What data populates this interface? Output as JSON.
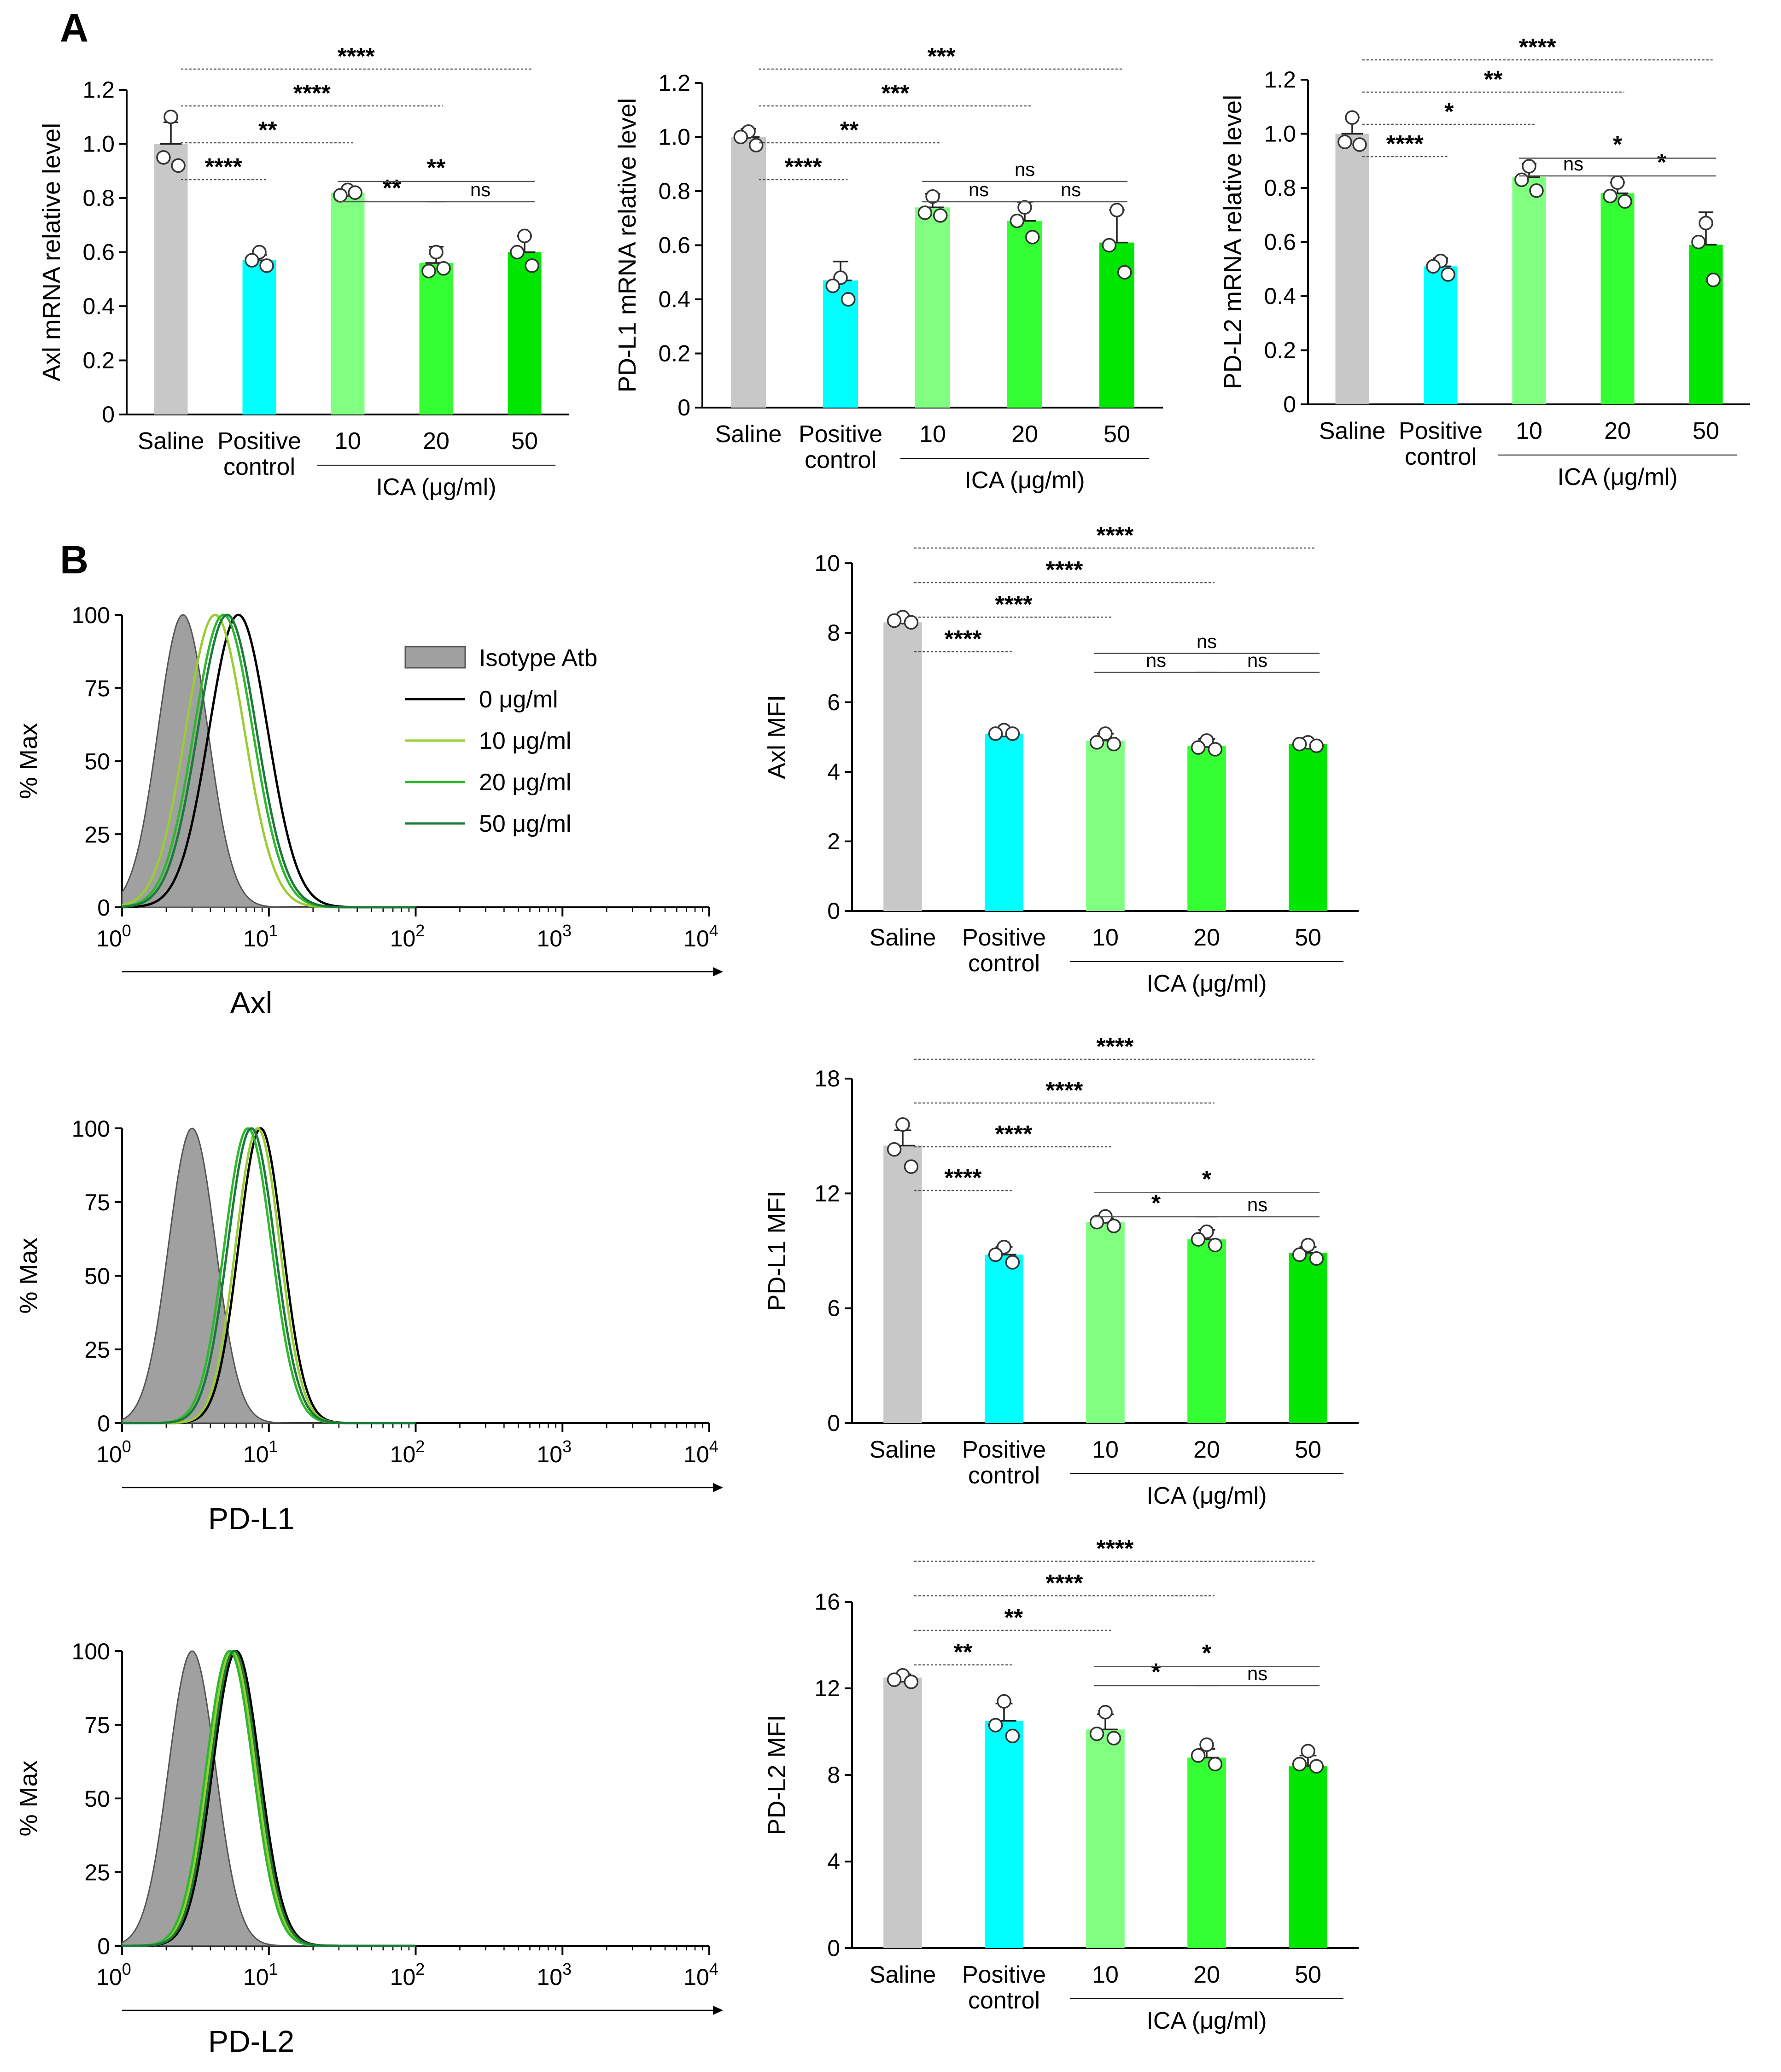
{
  "panel_labels": [
    "A",
    "B"
  ],
  "colors": {
    "saline": "#c8c8c8",
    "positive": "#00ffff",
    "ica10": "#80ff80",
    "ica20": "#33ff33",
    "ica50": "#00e600",
    "isotype": "#a0a0a0",
    "c0": "#000000",
    "c10": "#9acd32",
    "c20": "#2eb82e",
    "c50": "#1a7a3a"
  },
  "chart_data": [
    {
      "id": "axl_mrna",
      "type": "bar",
      "panel": "A",
      "ylabel": "Axl mRNA relative level",
      "ylim": [
        0,
        1.2
      ],
      "yticks": [
        "0",
        "0.2",
        "0.4",
        "0.6",
        "0.8",
        "1.0",
        "1.2"
      ],
      "categories": [
        "Saline",
        "Positive control",
        "10",
        "20",
        "50"
      ],
      "category_lines": [
        [
          "Saline"
        ],
        [
          "Positive",
          "control"
        ],
        [
          "10"
        ],
        [
          "20"
        ],
        [
          "50"
        ]
      ],
      "group_label": "ICA (μg/ml)",
      "values": [
        1.0,
        0.57,
        0.82,
        0.56,
        0.6
      ],
      "errors": [
        0.08,
        0.02,
        0.015,
        0.06,
        0.06
      ],
      "points": [
        [
          1.1,
          0.95,
          0.92
        ],
        [
          0.6,
          0.57,
          0.55
        ],
        [
          0.83,
          0.81,
          0.82
        ],
        [
          0.6,
          0.53,
          0.54
        ],
        [
          0.66,
          0.6,
          0.55
        ]
      ],
      "significance": [
        {
          "from": 0,
          "to": 1,
          "label": "****"
        },
        {
          "from": 0,
          "to": 2,
          "label": "**"
        },
        {
          "from": 0,
          "to": 3,
          "label": "****"
        },
        {
          "from": 0,
          "to": 4,
          "label": "****"
        },
        {
          "from": 2,
          "to": 3,
          "label": "**"
        },
        {
          "from": 3,
          "to": 4,
          "label": "ns"
        },
        {
          "from": 2,
          "to": 4,
          "label": "**"
        }
      ]
    },
    {
      "id": "pdl1_mrna",
      "type": "bar",
      "panel": "A",
      "ylabel": "PD-L1 mRNA relative level",
      "ylim": [
        0,
        1.2
      ],
      "yticks": [
        "0",
        "0.2",
        "0.4",
        "0.6",
        "0.8",
        "1.0",
        "1.2"
      ],
      "categories": [
        "Saline",
        "Positive control",
        "10",
        "20",
        "50"
      ],
      "category_lines": [
        [
          "Saline"
        ],
        [
          "Positive",
          "control"
        ],
        [
          "10"
        ],
        [
          "20"
        ],
        [
          "50"
        ]
      ],
      "group_label": "ICA (μg/ml)",
      "values": [
        1.0,
        0.47,
        0.74,
        0.69,
        0.61
      ],
      "errors": [
        0.03,
        0.07,
        0.05,
        0.07,
        0.12
      ],
      "points": [
        [
          1.02,
          1.0,
          0.97
        ],
        [
          0.48,
          0.45,
          0.4
        ],
        [
          0.78,
          0.72,
          0.71
        ],
        [
          0.74,
          0.69,
          0.63
        ],
        [
          0.73,
          0.6,
          0.5
        ]
      ],
      "significance": [
        {
          "from": 0,
          "to": 1,
          "label": "****"
        },
        {
          "from": 0,
          "to": 2,
          "label": "**"
        },
        {
          "from": 0,
          "to": 3,
          "label": "***"
        },
        {
          "from": 0,
          "to": 4,
          "label": "***"
        },
        {
          "from": 2,
          "to": 3,
          "label": "ns"
        },
        {
          "from": 3,
          "to": 4,
          "label": "ns"
        },
        {
          "from": 2,
          "to": 4,
          "label": "ns"
        }
      ]
    },
    {
      "id": "pdl2_mrna",
      "type": "bar",
      "panel": "A",
      "ylabel": "PD-L2 mRNA relative level",
      "ylim": [
        0,
        1.2
      ],
      "yticks": [
        "0",
        "0.2",
        "0.4",
        "0.6",
        "0.8",
        "1.0",
        "1.2"
      ],
      "categories": [
        "Saline",
        "Positive control",
        "10",
        "20",
        "50"
      ],
      "category_lines": [
        [
          "Saline"
        ],
        [
          "Positive",
          "control"
        ],
        [
          "10"
        ],
        [
          "20"
        ],
        [
          "50"
        ]
      ],
      "group_label": "ICA (μg/ml)",
      "values": [
        1.0,
        0.51,
        0.84,
        0.78,
        0.59
      ],
      "errors": [
        0.06,
        0.03,
        0.05,
        0.04,
        0.12
      ],
      "points": [
        [
          1.06,
          0.97,
          0.96
        ],
        [
          0.53,
          0.51,
          0.48
        ],
        [
          0.88,
          0.83,
          0.79
        ],
        [
          0.82,
          0.77,
          0.75
        ],
        [
          0.67,
          0.6,
          0.46
        ]
      ],
      "significance": [
        {
          "from": 0,
          "to": 1,
          "label": "****"
        },
        {
          "from": 0,
          "to": 2,
          "label": "*"
        },
        {
          "from": 0,
          "to": 3,
          "label": "**"
        },
        {
          "from": 0,
          "to": 4,
          "label": "****"
        },
        {
          "from": 2,
          "to": 3,
          "label": "ns"
        },
        {
          "from": 3,
          "to": 4,
          "label": "*"
        },
        {
          "from": 2,
          "to": 4,
          "label": "*"
        }
      ]
    },
    {
      "id": "axl_mfi",
      "type": "bar",
      "panel": "B",
      "ylabel": "Axl MFI",
      "ylim": [
        0,
        10
      ],
      "yticks": [
        "0",
        "2",
        "4",
        "6",
        "8",
        "10"
      ],
      "categories": [
        "Saline",
        "Positive control",
        "10",
        "20",
        "50"
      ],
      "category_lines": [
        [
          "Saline"
        ],
        [
          "Positive",
          "control"
        ],
        [
          "10"
        ],
        [
          "20"
        ],
        [
          "50"
        ]
      ],
      "group_label": "ICA (μg/ml)",
      "values": [
        8.3,
        5.1,
        4.9,
        4.75,
        4.8
      ],
      "errors": [
        0.12,
        0.06,
        0.2,
        0.2,
        0.1
      ],
      "points": [
        [
          8.45,
          8.35,
          8.3
        ],
        [
          5.2,
          5.1,
          5.1
        ],
        [
          5.1,
          4.85,
          4.8
        ],
        [
          4.9,
          4.7,
          4.65
        ],
        [
          4.85,
          4.8,
          4.75
        ]
      ],
      "significance": [
        {
          "from": 0,
          "to": 1,
          "label": "****"
        },
        {
          "from": 0,
          "to": 2,
          "label": "****"
        },
        {
          "from": 0,
          "to": 3,
          "label": "****"
        },
        {
          "from": 0,
          "to": 4,
          "label": "****"
        },
        {
          "from": 2,
          "to": 3,
          "label": "ns"
        },
        {
          "from": 3,
          "to": 4,
          "label": "ns"
        },
        {
          "from": 2,
          "to": 4,
          "label": "ns"
        }
      ]
    },
    {
      "id": "pdl1_mfi",
      "type": "bar",
      "panel": "B",
      "ylabel": "PD-L1 MFI",
      "ylim": [
        0,
        18
      ],
      "yticks": [
        "0",
        "6",
        "12",
        "18"
      ],
      "categories": [
        "Saline",
        "Positive control",
        "10",
        "20",
        "50"
      ],
      "category_lines": [
        [
          "Saline"
        ],
        [
          "Positive",
          "control"
        ],
        [
          "10"
        ],
        [
          "20"
        ],
        [
          "50"
        ]
      ],
      "group_label": "ICA (μg/ml)",
      "values": [
        14.5,
        8.8,
        10.5,
        9.6,
        8.9
      ],
      "errors": [
        0.8,
        0.4,
        0.2,
        0.5,
        0.3
      ],
      "points": [
        [
          15.6,
          14.3,
          13.4
        ],
        [
          9.2,
          8.8,
          8.4
        ],
        [
          10.8,
          10.5,
          10.3
        ],
        [
          10.0,
          9.6,
          9.3
        ],
        [
          9.3,
          8.8,
          8.6
        ]
      ],
      "significance": [
        {
          "from": 0,
          "to": 1,
          "label": "****"
        },
        {
          "from": 0,
          "to": 2,
          "label": "****"
        },
        {
          "from": 0,
          "to": 3,
          "label": "****"
        },
        {
          "from": 0,
          "to": 4,
          "label": "****"
        },
        {
          "from": 2,
          "to": 3,
          "label": "*"
        },
        {
          "from": 3,
          "to": 4,
          "label": "ns"
        },
        {
          "from": 2,
          "to": 4,
          "label": "*"
        }
      ]
    },
    {
      "id": "pdl2_mfi",
      "type": "bar",
      "panel": "B",
      "ylabel": "PD-L2 MFI",
      "ylim": [
        0,
        16
      ],
      "yticks": [
        "0",
        "4",
        "8",
        "12",
        "16"
      ],
      "categories": [
        "Saline",
        "Positive control",
        "10",
        "20",
        "50"
      ],
      "category_lines": [
        [
          "Saline"
        ],
        [
          "Positive",
          "control"
        ],
        [
          "10"
        ],
        [
          "20"
        ],
        [
          "50"
        ]
      ],
      "group_label": "ICA (μg/ml)",
      "values": [
        12.5,
        10.5,
        10.1,
        8.8,
        8.4
      ],
      "errors": [
        0.15,
        0.8,
        0.7,
        0.4,
        0.5
      ],
      "points": [
        [
          12.6,
          12.4,
          12.3
        ],
        [
          11.4,
          10.3,
          9.8
        ],
        [
          10.9,
          9.9,
          9.7
        ],
        [
          9.4,
          8.9,
          8.5
        ],
        [
          9.1,
          8.5,
          8.4
        ]
      ],
      "significance": [
        {
          "from": 0,
          "to": 1,
          "label": "**"
        },
        {
          "from": 0,
          "to": 2,
          "label": "**"
        },
        {
          "from": 0,
          "to": 3,
          "label": "****"
        },
        {
          "from": 0,
          "to": 4,
          "label": "****"
        },
        {
          "from": 2,
          "to": 3,
          "label": "*"
        },
        {
          "from": 3,
          "to": 4,
          "label": "ns"
        },
        {
          "from": 2,
          "to": 4,
          "label": "*"
        }
      ]
    },
    {
      "id": "axl_hist",
      "type": "line",
      "panel": "B",
      "xlabel": "Axl",
      "ylabel": "% Max",
      "xscale": "log",
      "xlim": [
        1,
        10000
      ],
      "ylim": [
        0,
        100
      ],
      "yticks": [
        "0",
        "25",
        "50",
        "75",
        "100"
      ],
      "xtick_values": [
        1,
        10,
        100,
        1000,
        10000
      ],
      "xtick_labels": [
        {
          "base": "10",
          "exp": "0"
        },
        {
          "base": "10",
          "exp": "1"
        },
        {
          "base": "10",
          "exp": "2"
        },
        {
          "base": "10",
          "exp": "3"
        },
        {
          "base": "10",
          "exp": "4"
        }
      ],
      "legend": [
        "Isotype Atb",
        "0 μg/ml",
        "10 μg/ml",
        "20 μg/ml",
        "50 μg/ml"
      ],
      "series": [
        {
          "name": "Isotype Atb",
          "peak_x": 2.6,
          "sigma": 0.17
        },
        {
          "name": "0 μg/ml",
          "peak_x": 6.2,
          "sigma": 0.2
        },
        {
          "name": "10 μg/ml",
          "peak_x": 4.3,
          "sigma": 0.2
        },
        {
          "name": "20 μg/ml",
          "peak_x": 4.9,
          "sigma": 0.2
        },
        {
          "name": "50 μg/ml",
          "peak_x": 5.2,
          "sigma": 0.2
        }
      ]
    },
    {
      "id": "pdl1_hist",
      "type": "line",
      "panel": "B",
      "xlabel": "PD-L1",
      "ylabel": "% Max",
      "xscale": "log",
      "xlim": [
        1,
        10000
      ],
      "ylim": [
        0,
        100
      ],
      "yticks": [
        "0",
        "25",
        "50",
        "75",
        "100"
      ],
      "xtick_values": [
        1,
        10,
        100,
        1000,
        10000
      ],
      "xtick_labels": [
        {
          "base": "10",
          "exp": "0"
        },
        {
          "base": "10",
          "exp": "1"
        },
        {
          "base": "10",
          "exp": "2"
        },
        {
          "base": "10",
          "exp": "3"
        },
        {
          "base": "10",
          "exp": "4"
        }
      ],
      "series": [
        {
          "name": "Isotype Atb",
          "peak_x": 3.0,
          "sigma": 0.16
        },
        {
          "name": "0 μg/ml",
          "peak_x": 8.8,
          "sigma": 0.15
        },
        {
          "name": "10 μg/ml",
          "peak_x": 8.4,
          "sigma": 0.15
        },
        {
          "name": "20 μg/ml",
          "peak_x": 7.2,
          "sigma": 0.16
        },
        {
          "name": "50 μg/ml",
          "peak_x": 7.6,
          "sigma": 0.16
        }
      ]
    },
    {
      "id": "pdl2_hist",
      "type": "line",
      "panel": "B",
      "xlabel": "PD-L2",
      "ylabel": "% Max",
      "xscale": "log",
      "xlim": [
        1,
        10000
      ],
      "ylim": [
        0,
        100
      ],
      "yticks": [
        "0",
        "25",
        "50",
        "75",
        "100"
      ],
      "xtick_values": [
        1,
        10,
        100,
        1000,
        10000
      ],
      "xtick_labels": [
        {
          "base": "10",
          "exp": "0"
        },
        {
          "base": "10",
          "exp": "1"
        },
        {
          "base": "10",
          "exp": "2"
        },
        {
          "base": "10",
          "exp": "3"
        },
        {
          "base": "10",
          "exp": "4"
        }
      ],
      "series": [
        {
          "name": "Isotype Atb",
          "peak_x": 3.0,
          "sigma": 0.16
        },
        {
          "name": "0 μg/ml",
          "peak_x": 6.0,
          "sigma": 0.16
        },
        {
          "name": "10 μg/ml",
          "peak_x": 5.6,
          "sigma": 0.16
        },
        {
          "name": "20 μg/ml",
          "peak_x": 5.4,
          "sigma": 0.16
        },
        {
          "name": "50 μg/ml",
          "peak_x": 5.8,
          "sigma": 0.16
        }
      ]
    }
  ]
}
